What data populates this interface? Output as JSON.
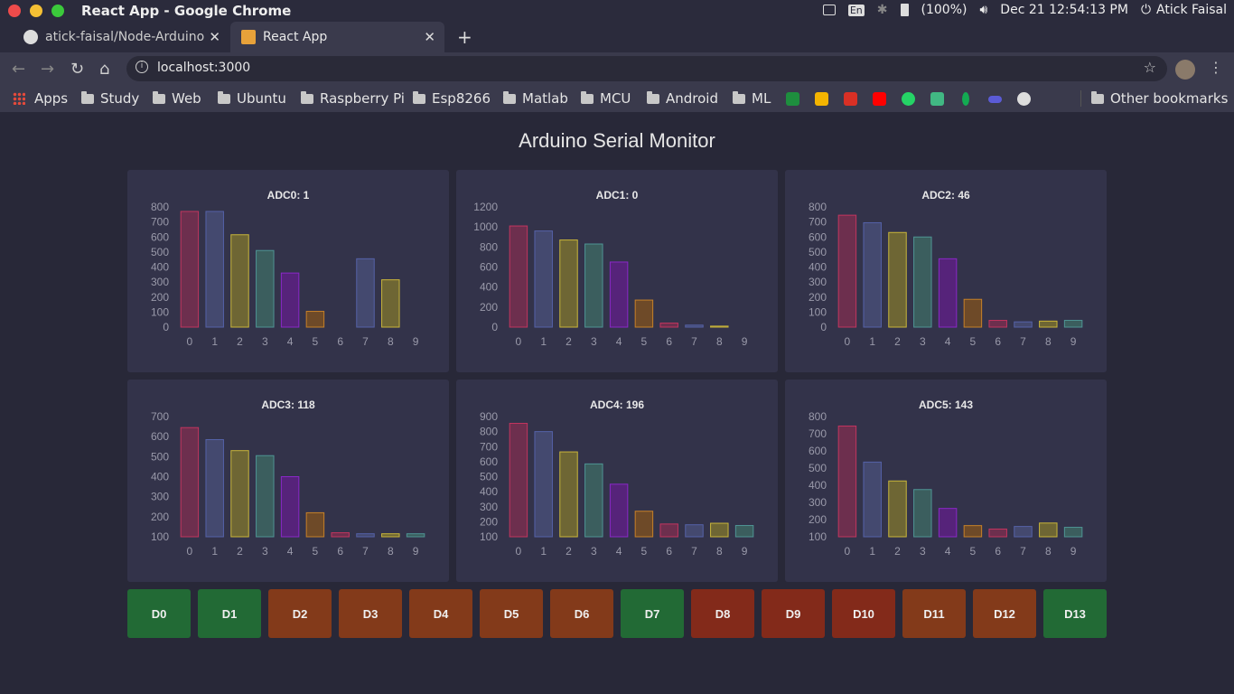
{
  "window": {
    "title": "React App - Google Chrome",
    "traffic_colors": [
      "#ee4b4b",
      "#f5c034",
      "#3bc93b"
    ]
  },
  "tray": {
    "keyboard_layout": "En",
    "battery": "(100%)",
    "datetime": "Dec 21 12:54:13 PM",
    "user": "Atick Faisal"
  },
  "tabs": [
    {
      "label": "atick-faisal/Node-Arduino",
      "icon": "github-icon",
      "active": false
    },
    {
      "label": "React App",
      "icon": "react-icon",
      "active": true
    }
  ],
  "address_bar": {
    "url": "localhost:3000"
  },
  "bookmarks": {
    "apps_label": "Apps",
    "folders": [
      "Study",
      "Web",
      "Ubuntu",
      "Raspberry Pi",
      "Esp8266",
      "Matlab",
      "MCU",
      "Android",
      "ML"
    ],
    "icon_bookmarks": [
      {
        "icon": "google-sheets-icon",
        "color": "#1e8e3e"
      },
      {
        "icon": "google-drive-icon",
        "color": "#f4b400"
      },
      {
        "icon": "gmail-icon",
        "color": "#d93025"
      },
      {
        "icon": "youtube-icon",
        "color": "#ff0000"
      },
      {
        "icon": "whatsapp-icon",
        "color": "#25d366"
      },
      {
        "icon": "vue-icon",
        "color": "#41b883"
      },
      {
        "icon": "mongodb-leaf-icon",
        "color": "#13aa52"
      },
      {
        "icon": "link-icon",
        "color": "#5b5bd6"
      },
      {
        "icon": "github-icon",
        "color": "#dddddd"
      }
    ],
    "other_label": "Other bookmarks"
  },
  "page": {
    "title": "Arduino Serial Monitor"
  },
  "chart_colors": {
    "fill": [
      "#6d2f4e",
      "#44496f",
      "#6e6634",
      "#3b5e5e",
      "#56237a",
      "#6e4a28",
      "#6d2f4e",
      "#44496f",
      "#6e6634",
      "#3b5e5e"
    ],
    "stroke": [
      "#c2355f",
      "#5562a8",
      "#c9b53a",
      "#4f9494",
      "#8a28c7",
      "#c68129",
      "#c2355f",
      "#5562a8",
      "#c9b53a",
      "#4f9494"
    ]
  },
  "chart_data": [
    {
      "type": "bar",
      "title": "ADC0: 1",
      "categories": [
        "0",
        "1",
        "2",
        "3",
        "4",
        "5",
        "6",
        "7",
        "8",
        "9"
      ],
      "values": [
        770,
        770,
        615,
        510,
        360,
        105,
        0,
        455,
        315,
        0
      ],
      "ylim": [
        0,
        800
      ],
      "yticks": [
        0,
        100,
        200,
        300,
        400,
        500,
        600,
        700,
        800
      ]
    },
    {
      "type": "bar",
      "title": "ADC1: 0",
      "categories": [
        "0",
        "1",
        "2",
        "3",
        "4",
        "5",
        "6",
        "7",
        "8",
        "9"
      ],
      "values": [
        1010,
        960,
        870,
        830,
        650,
        270,
        40,
        20,
        10,
        0
      ],
      "ylim": [
        0,
        1200
      ],
      "yticks": [
        0,
        200,
        400,
        600,
        800,
        1000,
        1200
      ]
    },
    {
      "type": "bar",
      "title": "ADC2: 46",
      "categories": [
        "0",
        "1",
        "2",
        "3",
        "4",
        "5",
        "6",
        "7",
        "8",
        "9"
      ],
      "values": [
        745,
        695,
        630,
        600,
        455,
        185,
        45,
        35,
        40,
        45
      ],
      "ylim": [
        0,
        800
      ],
      "yticks": [
        0,
        100,
        200,
        300,
        400,
        500,
        600,
        700,
        800
      ]
    },
    {
      "type": "bar",
      "title": "ADC3: 118",
      "categories": [
        "0",
        "1",
        "2",
        "3",
        "4",
        "5",
        "6",
        "7",
        "8",
        "9"
      ],
      "values": [
        645,
        585,
        530,
        505,
        400,
        220,
        120,
        115,
        115,
        115
      ],
      "ylim": [
        100,
        700
      ],
      "yticks": [
        100,
        200,
        300,
        400,
        500,
        600,
        700
      ]
    },
    {
      "type": "bar",
      "title": "ADC4: 196",
      "categories": [
        "0",
        "1",
        "2",
        "3",
        "4",
        "5",
        "6",
        "7",
        "8",
        "9"
      ],
      "values": [
        855,
        800,
        665,
        585,
        450,
        270,
        185,
        180,
        190,
        175
      ],
      "ylim": [
        100,
        900
      ],
      "yticks": [
        100,
        200,
        300,
        400,
        500,
        600,
        700,
        800,
        900
      ]
    },
    {
      "type": "bar",
      "title": "ADC5: 143",
      "categories": [
        "0",
        "1",
        "2",
        "3",
        "4",
        "5",
        "6",
        "7",
        "8",
        "9"
      ],
      "values": [
        745,
        535,
        425,
        375,
        265,
        165,
        145,
        160,
        180,
        155
      ],
      "ylim": [
        100,
        800
      ],
      "yticks": [
        100,
        200,
        300,
        400,
        500,
        600,
        700,
        800
      ]
    }
  ],
  "digital_pins": [
    {
      "label": "D0",
      "color": "#226a35"
    },
    {
      "label": "D1",
      "color": "#226a35"
    },
    {
      "label": "D2",
      "color": "#833a1a"
    },
    {
      "label": "D3",
      "color": "#833a1a"
    },
    {
      "label": "D4",
      "color": "#833a1a"
    },
    {
      "label": "D5",
      "color": "#833a1a"
    },
    {
      "label": "D6",
      "color": "#833a1a"
    },
    {
      "label": "D7",
      "color": "#226a35"
    },
    {
      "label": "D8",
      "color": "#832a1a"
    },
    {
      "label": "D9",
      "color": "#832a1a"
    },
    {
      "label": "D10",
      "color": "#832a1a"
    },
    {
      "label": "D11",
      "color": "#833a1a"
    },
    {
      "label": "D12",
      "color": "#833a1a"
    },
    {
      "label": "D13",
      "color": "#226a35"
    }
  ]
}
